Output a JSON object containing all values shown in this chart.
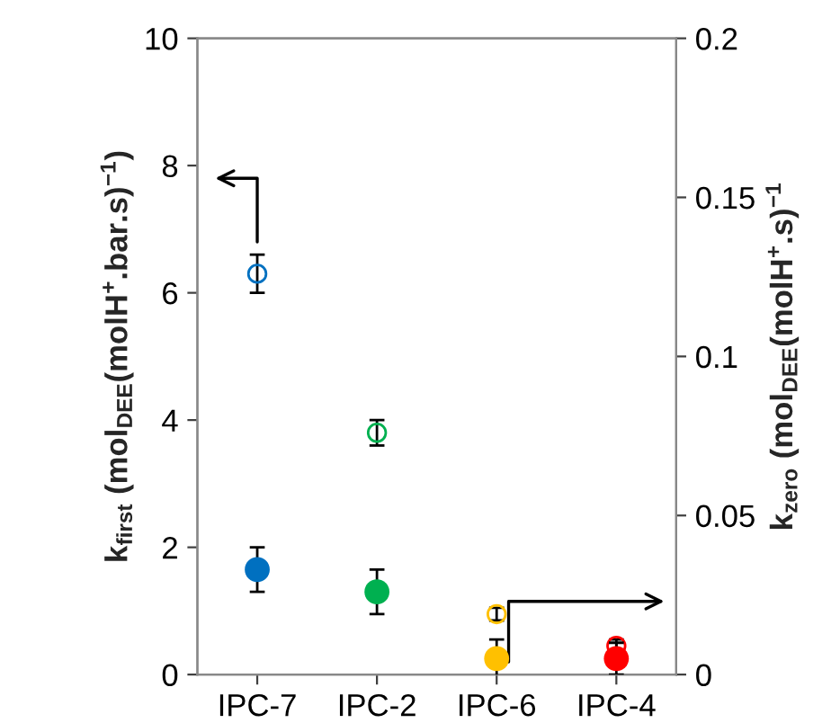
{
  "chart_data": {
    "type": "scatter",
    "categories": [
      "IPC-7",
      "IPC-2",
      "IPC-6",
      "IPC-4"
    ],
    "ylabel": "k$_{first}$ (mol$_{DEE}$(molH$^{+}$.bar.s)$^{−1}$)",
    "y2label": "k$_{zero}$ (mol$_{DEE}$(molH$^{+}$.s)$^{−1}$",
    "ylim": [
      0,
      10
    ],
    "yticks": [
      0,
      2,
      4,
      6,
      8,
      10
    ],
    "y2lim": [
      0,
      0.2
    ],
    "y2ticks": [
      0,
      {
        "value": 0.05,
        "label": "0.05"
      },
      {
        "value": 0.1,
        "label": "0.1"
      },
      {
        "value": 0.15,
        "label": "0.15"
      },
      {
        "value": 0.2,
        "label": "0.2"
      }
    ],
    "marker": "circle",
    "grid": false,
    "series": [
      {
        "colors": [
          "#0070c0",
          "#00b050",
          "#ffc000",
          "#ff0000"
        ],
        "values": [
          6.3,
          3.8,
          0.95,
          0.45
        ],
        "errors": [
          0.3,
          0.2,
          0.1,
          0.1
        ]
      },
      {
        "axis": "y2",
        "colors": [
          "#0070c0",
          "#00b050",
          "#ffc000",
          "#ff0000"
        ],
        "values": [
          0.033,
          0.026,
          0.005,
          0.005
        ],
        "errors": [
          0.007,
          0.007,
          0.006,
          0.005
        ]
      }
    ]
  }
}
